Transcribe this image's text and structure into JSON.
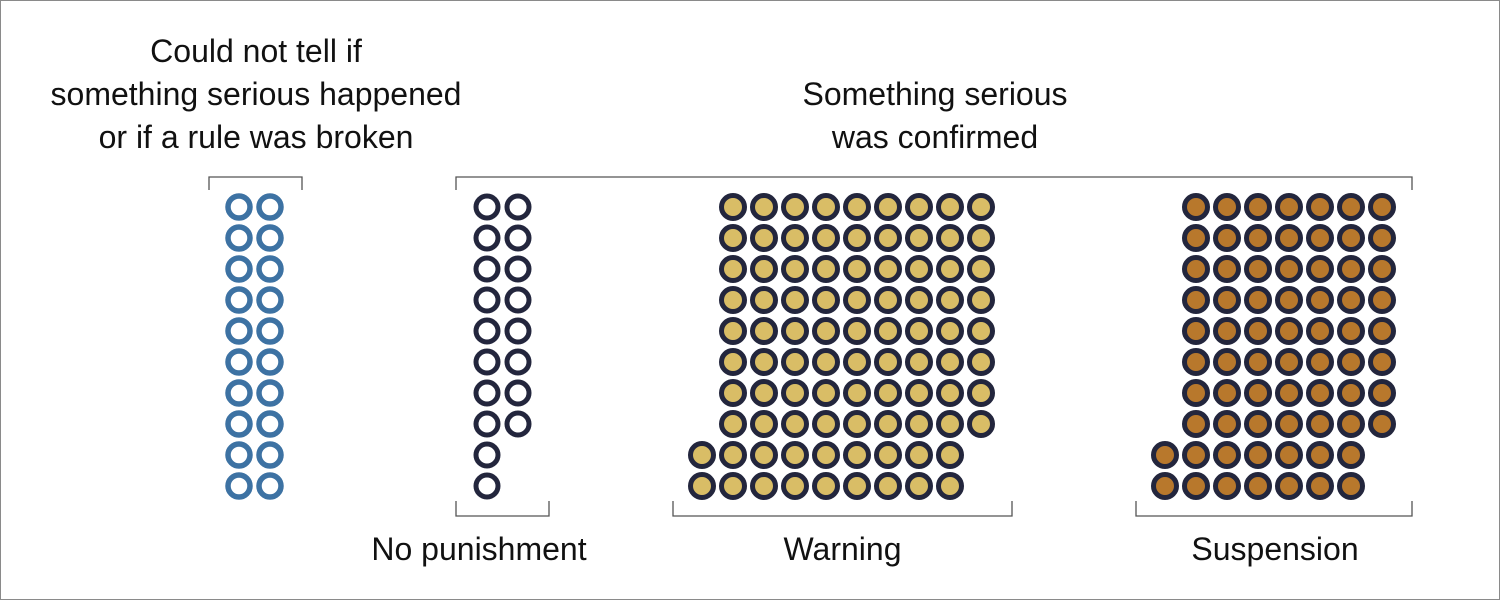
{
  "headers": {
    "left": [
      "Could not tell if",
      "something serious happened",
      "or if a rule was broken"
    ],
    "right": [
      "Something serious",
      "was confirmed"
    ]
  },
  "labels": {
    "no_punishment": "No punishment",
    "warning": "Warning",
    "suspension": "Suspension"
  },
  "colors": {
    "unknown": "#3d72a3",
    "navy": "#23263d",
    "warning_fill": "#d9bd66",
    "suspension_fill": "#b8782c",
    "bracket": "#555555"
  },
  "chart_data": {
    "type": "dot-matrix",
    "groups": [
      {
        "name": "unknown",
        "count": 20,
        "columns": 2
      },
      {
        "name": "No punishment",
        "count": 18,
        "columns": 2
      },
      {
        "name": "Warning",
        "count": 90,
        "columns": 9
      },
      {
        "name": "Suspension",
        "count": 72,
        "columns": 7
      }
    ]
  }
}
